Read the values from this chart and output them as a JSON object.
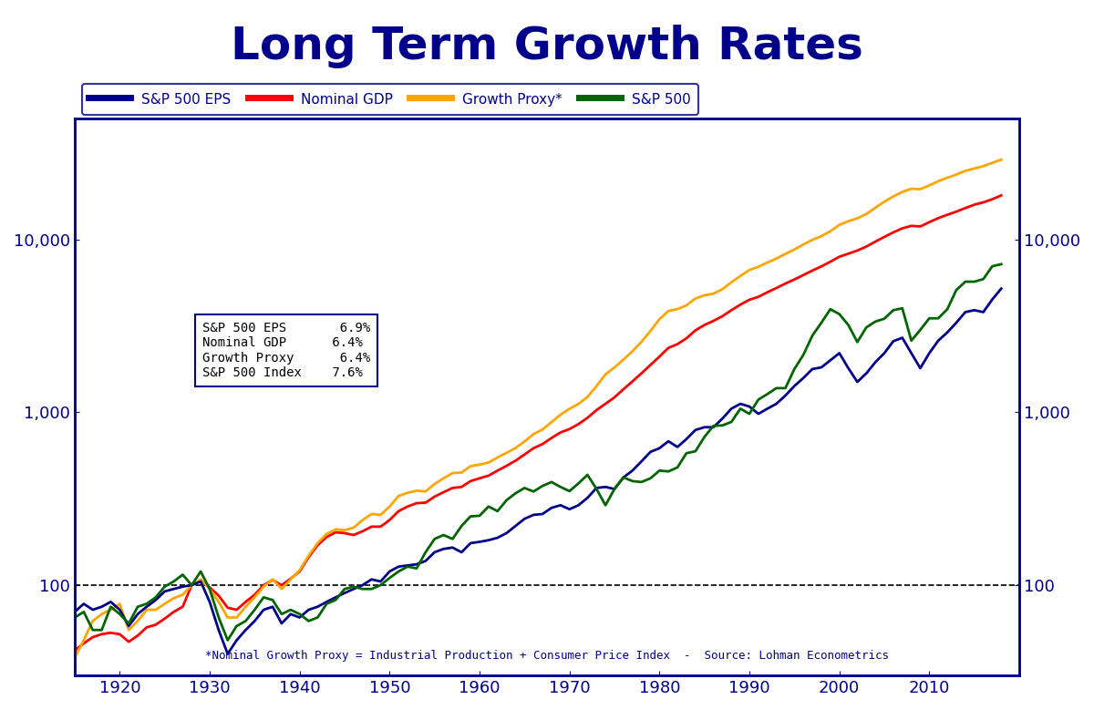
{
  "title": "Long Term Growth Rates",
  "title_color": "#00008B",
  "title_fontsize": 36,
  "background_color": "#FFFFFF",
  "annotation_text": "*Nominal Growth Proxy = Industrial Production + Consumer Price Index  -  Source: Lohman Econometrics",
  "legend_entries": [
    {
      "label": "S&P 500 EPS",
      "color": "#00008B"
    },
    {
      "label": "Nominal GDP",
      "color": "#FF0000"
    },
    {
      "label": "Growth Proxy*",
      "color": "#FFA500"
    },
    {
      "label": "S&P 500",
      "color": "#006400"
    }
  ],
  "series_colors": {
    "eps": "#00008B",
    "gdp": "#FF0000",
    "proxy": "#FFA500",
    "sp500": "#006400"
  },
  "ylim": [
    30,
    50000
  ],
  "xlim": [
    1915,
    2020
  ],
  "xticks": [
    1920,
    1930,
    1940,
    1950,
    1960,
    1970,
    1980,
    1990,
    2000,
    2010
  ],
  "yticks": [
    100,
    1000,
    10000
  ],
  "base_year": 1928,
  "line_width": 2.0,
  "hline_value": 100,
  "hline_color": "#000000",
  "sp500_data": {
    "1915": 65,
    "1916": 70,
    "1917": 55,
    "1918": 55,
    "1919": 75,
    "1920": 68,
    "1921": 60,
    "1922": 75,
    "1923": 78,
    "1924": 85,
    "1925": 98,
    "1926": 105,
    "1927": 115,
    "1928": 100,
    "1929": 120,
    "1930": 95,
    "1931": 65,
    "1932": 48,
    "1933": 58,
    "1934": 62,
    "1935": 72,
    "1936": 85,
    "1937": 82,
    "1938": 68,
    "1939": 72,
    "1940": 68,
    "1941": 62,
    "1942": 65,
    "1943": 78,
    "1944": 82,
    "1945": 95,
    "1946": 98,
    "1947": 95,
    "1948": 95,
    "1949": 100,
    "1950": 110,
    "1951": 120,
    "1952": 128,
    "1953": 125,
    "1954": 155,
    "1955": 185,
    "1956": 195,
    "1957": 185,
    "1958": 220,
    "1959": 250,
    "1960": 252,
    "1961": 285,
    "1962": 268,
    "1963": 310,
    "1964": 340,
    "1965": 365,
    "1966": 348,
    "1967": 375,
    "1968": 395,
    "1969": 370,
    "1970": 350,
    "1971": 388,
    "1972": 435,
    "1973": 360,
    "1974": 290,
    "1975": 360,
    "1976": 420,
    "1977": 400,
    "1978": 395,
    "1979": 415,
    "1980": 460,
    "1981": 455,
    "1982": 480,
    "1983": 580,
    "1984": 595,
    "1985": 720,
    "1986": 835,
    "1987": 840,
    "1988": 880,
    "1989": 1050,
    "1990": 980,
    "1991": 1185,
    "1992": 1275,
    "1993": 1380,
    "1994": 1380,
    "1995": 1780,
    "1996": 2150,
    "1997": 2780,
    "1998": 3300,
    "1999": 3950,
    "2000": 3700,
    "2001": 3200,
    "2002": 2550,
    "2003": 3100,
    "2004": 3350,
    "2005": 3480,
    "2006": 3900,
    "2007": 4000,
    "2008": 2600,
    "2009": 3000,
    "2010": 3500,
    "2011": 3500,
    "2012": 3950,
    "2013": 5100,
    "2014": 5700,
    "2015": 5700,
    "2016": 5900,
    "2017": 7000,
    "2018": 7200
  },
  "eps_data": {
    "1915": 70,
    "1916": 78,
    "1917": 72,
    "1918": 75,
    "1919": 80,
    "1920": 72,
    "1921": 58,
    "1922": 68,
    "1923": 75,
    "1924": 82,
    "1925": 92,
    "1926": 95,
    "1927": 98,
    "1928": 100,
    "1929": 105,
    "1930": 80,
    "1931": 55,
    "1932": 40,
    "1933": 48,
    "1934": 55,
    "1935": 62,
    "1936": 72,
    "1937": 75,
    "1938": 60,
    "1939": 68,
    "1940": 65,
    "1941": 72,
    "1942": 75,
    "1943": 80,
    "1944": 85,
    "1945": 90,
    "1946": 95,
    "1947": 100,
    "1948": 108,
    "1949": 105,
    "1950": 120,
    "1951": 128,
    "1952": 130,
    "1953": 132,
    "1954": 138,
    "1955": 155,
    "1956": 162,
    "1957": 165,
    "1958": 155,
    "1959": 175,
    "1960": 178,
    "1961": 182,
    "1962": 188,
    "1963": 200,
    "1964": 220,
    "1965": 242,
    "1966": 255,
    "1967": 258,
    "1968": 280,
    "1969": 290,
    "1970": 275,
    "1971": 290,
    "1972": 320,
    "1973": 365,
    "1974": 370,
    "1975": 360,
    "1976": 420,
    "1977": 460,
    "1978": 520,
    "1979": 590,
    "1980": 620,
    "1981": 680,
    "1982": 630,
    "1983": 700,
    "1984": 790,
    "1985": 820,
    "1986": 820,
    "1987": 920,
    "1988": 1050,
    "1989": 1120,
    "1990": 1080,
    "1991": 980,
    "1992": 1050,
    "1993": 1120,
    "1994": 1250,
    "1995": 1420,
    "1996": 1580,
    "1997": 1780,
    "1998": 1820,
    "1999": 2000,
    "2000": 2200,
    "2001": 1800,
    "2002": 1500,
    "2003": 1680,
    "2004": 1950,
    "2005": 2200,
    "2006": 2580,
    "2007": 2700,
    "2008": 2200,
    "2009": 1800,
    "2010": 2200,
    "2011": 2600,
    "2012": 2900,
    "2013": 3300,
    "2014": 3800,
    "2015": 3900,
    "2016": 3800,
    "2017": 4500,
    "2018": 5200
  },
  "gdp_data": {
    "1915": 42,
    "1916": 46,
    "1917": 50,
    "1918": 52,
    "1919": 53,
    "1920": 52,
    "1921": 47,
    "1922": 51,
    "1923": 57,
    "1924": 59,
    "1925": 64,
    "1926": 70,
    "1927": 75,
    "1928": 100,
    "1929": 107,
    "1930": 97,
    "1931": 87,
    "1932": 74,
    "1933": 72,
    "1934": 80,
    "1935": 88,
    "1936": 100,
    "1937": 107,
    "1938": 100,
    "1939": 109,
    "1940": 120,
    "1941": 145,
    "1942": 170,
    "1943": 190,
    "1944": 202,
    "1945": 200,
    "1946": 195,
    "1947": 205,
    "1948": 218,
    "1949": 218,
    "1950": 238,
    "1951": 268,
    "1952": 285,
    "1953": 298,
    "1954": 300,
    "1955": 325,
    "1956": 345,
    "1957": 365,
    "1958": 370,
    "1959": 400,
    "1960": 415,
    "1961": 430,
    "1962": 460,
    "1963": 490,
    "1964": 525,
    "1965": 570,
    "1966": 620,
    "1967": 655,
    "1968": 710,
    "1969": 765,
    "1970": 800,
    "1971": 855,
    "1972": 930,
    "1973": 1030,
    "1974": 1120,
    "1975": 1220,
    "1976": 1360,
    "1977": 1510,
    "1978": 1680,
    "1979": 1880,
    "1980": 2100,
    "1981": 2360,
    "1982": 2480,
    "1983": 2680,
    "1984": 2980,
    "1985": 3200,
    "1986": 3380,
    "1987": 3600,
    "1988": 3900,
    "1989": 4200,
    "1990": 4480,
    "1991": 4660,
    "1992": 4950,
    "1993": 5240,
    "1994": 5560,
    "1995": 5870,
    "1996": 6230,
    "1997": 6610,
    "1998": 6990,
    "1999": 7440,
    "2000": 7950,
    "2001": 8280,
    "2002": 8630,
    "2003": 9100,
    "2004": 9720,
    "2005": 10350,
    "2006": 11000,
    "2007": 11600,
    "2008": 12000,
    "2009": 11900,
    "2010": 12600,
    "2011": 13300,
    "2012": 13900,
    "2013": 14500,
    "2014": 15200,
    "2015": 15900,
    "2016": 16400,
    "2017": 17100,
    "2018": 18000
  },
  "proxy_data": {
    "1915": 38,
    "1916": 48,
    "1917": 62,
    "1918": 68,
    "1919": 72,
    "1920": 78,
    "1921": 55,
    "1922": 62,
    "1923": 72,
    "1924": 72,
    "1925": 78,
    "1926": 84,
    "1927": 88,
    "1928": 100,
    "1929": 108,
    "1930": 95,
    "1931": 80,
    "1932": 65,
    "1933": 65,
    "1934": 75,
    "1935": 85,
    "1936": 98,
    "1937": 108,
    "1938": 95,
    "1939": 108,
    "1940": 122,
    "1941": 148,
    "1942": 175,
    "1943": 198,
    "1944": 210,
    "1945": 208,
    "1946": 215,
    "1947": 238,
    "1948": 258,
    "1949": 255,
    "1950": 285,
    "1951": 328,
    "1952": 342,
    "1953": 352,
    "1954": 348,
    "1955": 385,
    "1956": 415,
    "1957": 445,
    "1958": 448,
    "1959": 488,
    "1960": 498,
    "1961": 512,
    "1962": 548,
    "1963": 582,
    "1964": 622,
    "1965": 678,
    "1966": 748,
    "1967": 795,
    "1968": 878,
    "1969": 968,
    "1970": 1048,
    "1971": 1118,
    "1972": 1228,
    "1973": 1418,
    "1974": 1658,
    "1975": 1818,
    "1976": 2018,
    "1977": 2258,
    "1978": 2558,
    "1979": 2958,
    "1980": 3458,
    "1981": 3858,
    "1982": 3958,
    "1983": 4158,
    "1984": 4558,
    "1985": 4758,
    "1986": 4858,
    "1987": 5158,
    "1988": 5658,
    "1989": 6158,
    "1990": 6658,
    "1991": 6958,
    "1992": 7358,
    "1993": 7758,
    "1994": 8258,
    "1995": 8758,
    "1996": 9358,
    "1997": 9958,
    "1998": 10458,
    "1999": 11158,
    "2000": 12158,
    "2001": 12758,
    "2002": 13258,
    "2003": 14058,
    "2004": 15258,
    "2005": 16558,
    "2006": 17758,
    "2007": 18858,
    "2008": 19658,
    "2009": 19558,
    "2010": 20558,
    "2011": 21758,
    "2012": 22758,
    "2013": 23758,
    "2014": 24958,
    "2015": 25758,
    "2016": 26558,
    "2017": 27758,
    "2018": 29000
  }
}
